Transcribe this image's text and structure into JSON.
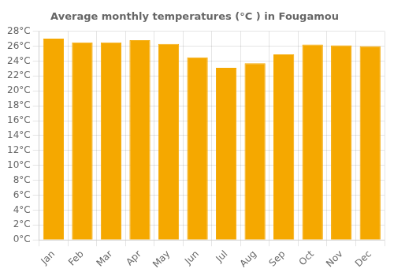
{
  "chart_data": {
    "type": "bar",
    "title": "Average monthly temperatures (°C ) in Fougamou",
    "categories": [
      "Jan",
      "Feb",
      "Mar",
      "Apr",
      "May",
      "Jun",
      "Jul",
      "Aug",
      "Sep",
      "Oct",
      "Nov",
      "Dec"
    ],
    "values": [
      27.0,
      26.5,
      26.5,
      26.8,
      26.3,
      24.5,
      23.1,
      23.7,
      24.9,
      26.2,
      26.1,
      26.0
    ],
    "color": "#F5A800",
    "ylim": [
      0,
      28
    ],
    "yticks": [
      {
        "value": 0,
        "label": "0°C"
      },
      {
        "value": 2,
        "label": "2°C"
      },
      {
        "value": 4,
        "label": "4°C"
      },
      {
        "value": 6,
        "label": "6°C"
      },
      {
        "value": 8,
        "label": "8°C"
      },
      {
        "value": 10,
        "label": "10°C"
      },
      {
        "value": 12,
        "label": "12°C"
      },
      {
        "value": 14,
        "label": "14°C"
      },
      {
        "value": 16,
        "label": "16°C"
      },
      {
        "value": 18,
        "label": "18°C"
      },
      {
        "value": 20,
        "label": "20°C"
      },
      {
        "value": 22,
        "label": "22°C"
      },
      {
        "value": 24,
        "label": "24°C"
      },
      {
        "value": 26,
        "label": "26°C"
      },
      {
        "value": 28,
        "label": "28°C"
      }
    ],
    "grid": true
  }
}
